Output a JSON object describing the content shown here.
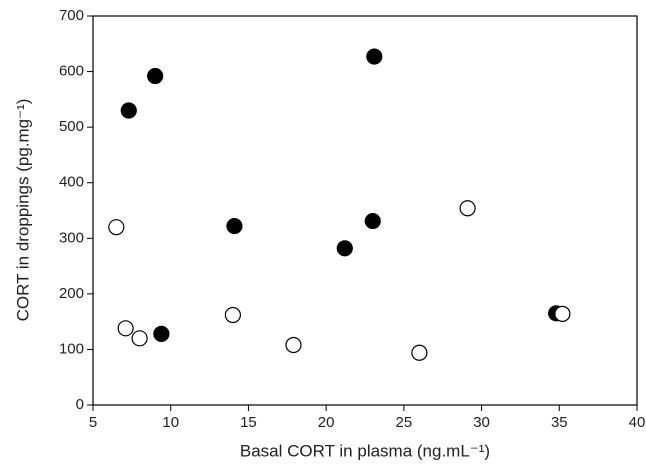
{
  "chart_data": {
    "type": "scatter",
    "x_label": "Basal CORT in plasma (ng.mL⁻¹)",
    "y_label": "CORT in droppings (pg.mg⁻¹)",
    "xlim": [
      5,
      40
    ],
    "xticks": [
      5,
      10,
      15,
      20,
      25,
      30,
      35,
      40
    ],
    "ylim": [
      0,
      700
    ],
    "yticks": [
      0,
      100,
      200,
      300,
      400,
      500,
      600,
      700
    ],
    "series": [
      {
        "marker": "filled",
        "color": "#000000",
        "x": [
          7.3,
          9.0,
          23.1,
          14.1,
          21.2,
          23.0,
          9.4,
          34.8
        ],
        "values": [
          530,
          592,
          627,
          322,
          282,
          331,
          128,
          165
        ]
      },
      {
        "marker": "open",
        "color": "#000000",
        "x": [
          6.5,
          7.1,
          8.0,
          14.0,
          17.9,
          26.0,
          29.1,
          35.2
        ],
        "values": [
          320,
          138,
          120,
          162,
          108,
          94,
          354,
          164
        ]
      }
    ]
  }
}
